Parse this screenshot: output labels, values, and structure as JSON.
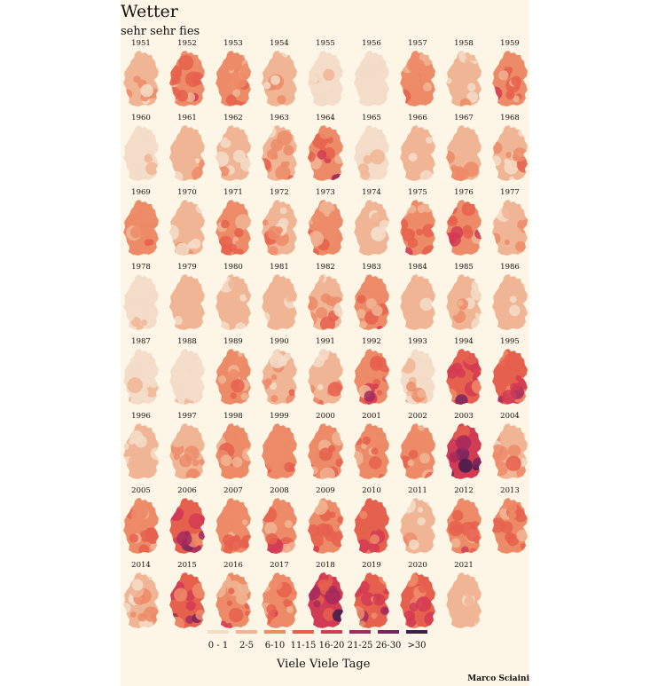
{
  "title": "Wetter",
  "subtitle": "sehr sehr fies",
  "legend_title": "Viele Viele Tage",
  "credit": "Marco Sciaini",
  "legend": [
    {
      "label": "0 - 1",
      "color": "#f3ddc9"
    },
    {
      "label": "2-5",
      "color": "#f0b594"
    },
    {
      "label": "6-10",
      "color": "#ed8b68"
    },
    {
      "label": "11-15",
      "color": "#e6604e"
    },
    {
      "label": "16-20",
      "color": "#d23b53"
    },
    {
      "label": "21-25",
      "color": "#a52a5d"
    },
    {
      "label": "26-30",
      "color": "#74245f"
    },
    {
      "label": ">30",
      "color": "#3e1d4e"
    }
  ],
  "maps": [
    {
      "year": "1951",
      "level": 1,
      "hot": 2
    },
    {
      "year": "1952",
      "level": 2,
      "hot": 5
    },
    {
      "year": "1953",
      "level": 2,
      "hot": 3
    },
    {
      "year": "1954",
      "level": 1,
      "hot": 2
    },
    {
      "year": "1955",
      "level": 0,
      "hot": 1
    },
    {
      "year": "1956",
      "level": 0,
      "hot": 0
    },
    {
      "year": "1957",
      "level": 2,
      "hot": 3
    },
    {
      "year": "1958",
      "level": 1,
      "hot": 2
    },
    {
      "year": "1959",
      "level": 2,
      "hot": 4
    },
    {
      "year": "1960",
      "level": 0,
      "hot": 1
    },
    {
      "year": "1961",
      "level": 1,
      "hot": 2
    },
    {
      "year": "1962",
      "level": 1,
      "hot": 2
    },
    {
      "year": "1963",
      "level": 1,
      "hot": 3
    },
    {
      "year": "1964",
      "level": 2,
      "hot": 5
    },
    {
      "year": "1965",
      "level": 0,
      "hot": 1
    },
    {
      "year": "1966",
      "level": 1,
      "hot": 1
    },
    {
      "year": "1967",
      "level": 1,
      "hot": 2
    },
    {
      "year": "1968",
      "level": 1,
      "hot": 3
    },
    {
      "year": "1969",
      "level": 2,
      "hot": 3
    },
    {
      "year": "1970",
      "level": 1,
      "hot": 2
    },
    {
      "year": "1971",
      "level": 2,
      "hot": 4
    },
    {
      "year": "1972",
      "level": 1,
      "hot": 3
    },
    {
      "year": "1973",
      "level": 2,
      "hot": 3
    },
    {
      "year": "1974",
      "level": 1,
      "hot": 1
    },
    {
      "year": "1975",
      "level": 2,
      "hot": 4
    },
    {
      "year": "1976",
      "level": 2,
      "hot": 5
    },
    {
      "year": "1977",
      "level": 1,
      "hot": 2
    },
    {
      "year": "1978",
      "level": 0,
      "hot": 1
    },
    {
      "year": "1979",
      "level": 1,
      "hot": 1
    },
    {
      "year": "1980",
      "level": 1,
      "hot": 1
    },
    {
      "year": "1981",
      "level": 1,
      "hot": 1
    },
    {
      "year": "1982",
      "level": 1,
      "hot": 3
    },
    {
      "year": "1983",
      "level": 2,
      "hot": 4
    },
    {
      "year": "1984",
      "level": 1,
      "hot": 1
    },
    {
      "year": "1985",
      "level": 1,
      "hot": 2
    },
    {
      "year": "1986",
      "level": 1,
      "hot": 2
    },
    {
      "year": "1987",
      "level": 0,
      "hot": 1
    },
    {
      "year": "1988",
      "level": 0,
      "hot": 1
    },
    {
      "year": "1989",
      "level": 2,
      "hot": 3
    },
    {
      "year": "1990",
      "level": 1,
      "hot": 3
    },
    {
      "year": "1991",
      "level": 1,
      "hot": 3
    },
    {
      "year": "1992",
      "level": 2,
      "hot": 5
    },
    {
      "year": "1993",
      "level": 0,
      "hot": 2
    },
    {
      "year": "1994",
      "level": 3,
      "hot": 6
    },
    {
      "year": "1995",
      "level": 3,
      "hot": 5
    },
    {
      "year": "1996",
      "level": 1,
      "hot": 1
    },
    {
      "year": "1997",
      "level": 1,
      "hot": 3
    },
    {
      "year": "1998",
      "level": 2,
      "hot": 3
    },
    {
      "year": "1999",
      "level": 2,
      "hot": 3
    },
    {
      "year": "2000",
      "level": 2,
      "hot": 3
    },
    {
      "year": "2001",
      "level": 2,
      "hot": 4
    },
    {
      "year": "2002",
      "level": 2,
      "hot": 3
    },
    {
      "year": "2003",
      "level": 4,
      "hot": 7
    },
    {
      "year": "2004",
      "level": 1,
      "hot": 3
    },
    {
      "year": "2005",
      "level": 2,
      "hot": 4
    },
    {
      "year": "2006",
      "level": 3,
      "hot": 6
    },
    {
      "year": "2007",
      "level": 2,
      "hot": 3
    },
    {
      "year": "2008",
      "level": 2,
      "hot": 4
    },
    {
      "year": "2009",
      "level": 2,
      "hot": 4
    },
    {
      "year": "2010",
      "level": 3,
      "hot": 4
    },
    {
      "year": "2011",
      "level": 1,
      "hot": 2
    },
    {
      "year": "2012",
      "level": 2,
      "hot": 4
    },
    {
      "year": "2013",
      "level": 2,
      "hot": 4
    },
    {
      "year": "2014",
      "level": 1,
      "hot": 3
    },
    {
      "year": "2015",
      "level": 3,
      "hot": 6
    },
    {
      "year": "2016",
      "level": 2,
      "hot": 4
    },
    {
      "year": "2017",
      "level": 2,
      "hot": 4
    },
    {
      "year": "2018",
      "level": 4,
      "hot": 7
    },
    {
      "year": "2019",
      "level": 3,
      "hot": 6
    },
    {
      "year": "2020",
      "level": 3,
      "hot": 5
    },
    {
      "year": "2021",
      "level": 1,
      "hot": 1
    }
  ]
}
